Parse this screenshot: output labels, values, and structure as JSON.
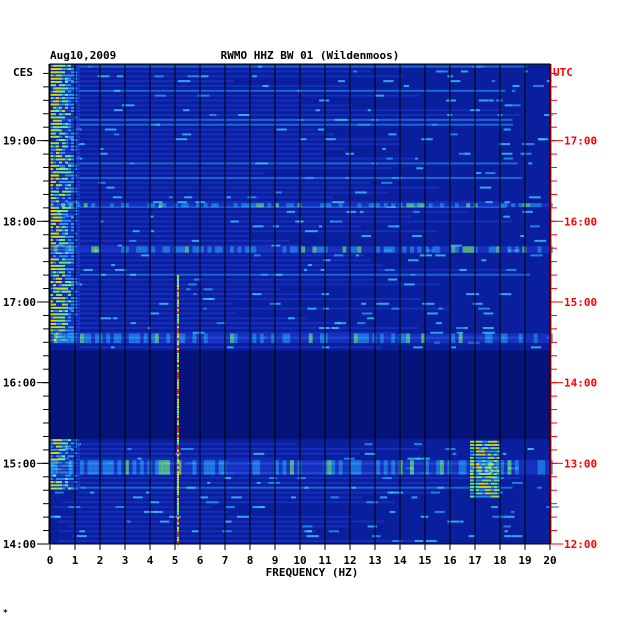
{
  "chart_data": {
    "type": "heatmap",
    "date": "Aug10,2009",
    "title": "RWMO HHZ BW 01 (Wildenmoos)",
    "left_timezone": "CES",
    "right_timezone": "UTC",
    "xlabel": "FREQUENCY (HZ)",
    "xlim": [
      0,
      20
    ],
    "x_ticks": [
      0,
      1,
      2,
      3,
      4,
      5,
      6,
      7,
      8,
      9,
      10,
      11,
      12,
      13,
      14,
      15,
      16,
      17,
      18,
      19,
      20
    ],
    "x_tick_labels": [
      "0",
      "1",
      "2",
      "3",
      "4",
      "5",
      "6",
      "7",
      "8",
      "9",
      "10",
      "11",
      "12",
      "13",
      "14",
      "15",
      "16",
      "17",
      "18",
      "19",
      "20"
    ],
    "y_range_hours": [
      14.0,
      19.95
    ],
    "left_ticks": [
      {
        "hour": 14,
        "label": "14:00"
      },
      {
        "hour": 15,
        "label": "15:00"
      },
      {
        "hour": 16,
        "label": "16:00"
      },
      {
        "hour": 17,
        "label": "17:00"
      },
      {
        "hour": 18,
        "label": "18:00"
      },
      {
        "hour": 19,
        "label": "19:00"
      }
    ],
    "right_ticks": [
      {
        "hour": 14,
        "label": "12:00"
      },
      {
        "hour": 15,
        "label": "13:00"
      },
      {
        "hour": 16,
        "label": "14:00"
      },
      {
        "hour": 17,
        "label": "15:00"
      },
      {
        "hour": 18,
        "label": "16:00"
      },
      {
        "hour": 19,
        "label": "17:00"
      }
    ],
    "grid": true,
    "colors": {
      "background": "#0a1f9e",
      "low": "#1f3bd6",
      "mid": "#2aa3ff",
      "high": "#ffe600",
      "peak": "#ff2a00",
      "gap": "#05137a"
    },
    "features": [
      {
        "name": "low-frequency energy",
        "freq": [
          0,
          1.2
        ],
        "hours": [
          14.7,
          19.95
        ]
      },
      {
        "name": "tremor line 5 Hz",
        "freq": [
          5.0,
          5.2
        ],
        "hours": [
          14.0,
          17.35
        ]
      },
      {
        "name": "17.5 Hz source",
        "freq": [
          16.8,
          18.0
        ],
        "hours": [
          14.6,
          15.3
        ]
      },
      {
        "name": "quiet gap",
        "freq": [
          0,
          20
        ],
        "hours": [
          15.3,
          16.4
        ]
      }
    ]
  },
  "footer_mark": "*"
}
